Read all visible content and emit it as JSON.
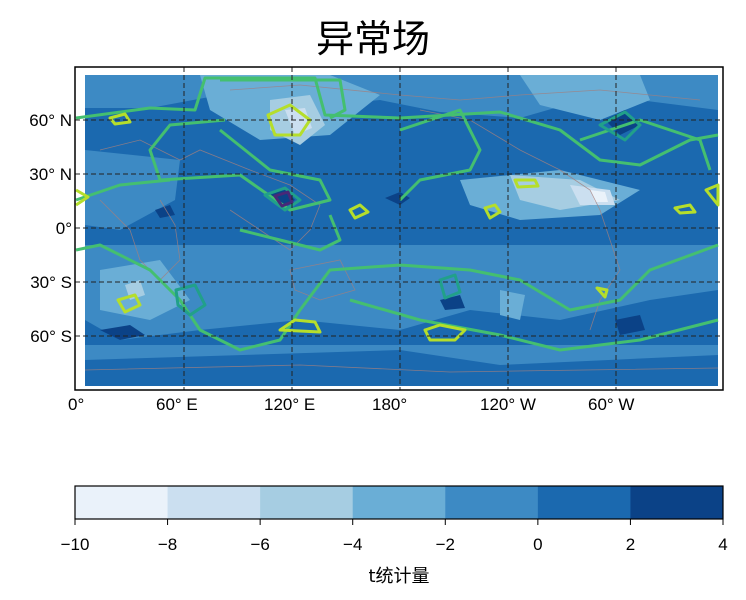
{
  "chart_data": {
    "type": "contour",
    "title": "异常场",
    "projection": "equirectangular map",
    "x_ticks": [
      "0°",
      "60° E",
      "120° E",
      "180°",
      "120° W",
      "60° W"
    ],
    "x_tick_values": [
      0,
      60,
      120,
      180,
      240,
      300
    ],
    "y_ticks": [
      "60° N",
      "30° N",
      "0°",
      "30° S",
      "60° S"
    ],
    "y_tick_values": [
      60,
      30,
      0,
      -30,
      -60
    ],
    "xlim": [
      0,
      360
    ],
    "ylim": [
      -90,
      90
    ],
    "grid": true,
    "grid_style": "dashed",
    "coastlines": true,
    "colorbar": {
      "label": "t统计量",
      "orientation": "horizontal",
      "placement": "bottom",
      "levels": [
        -10,
        -8,
        -6,
        -4,
        -2,
        0,
        2,
        4
      ],
      "tick_labels": [
        "−10",
        "−8",
        "−6",
        "−4",
        "−2",
        "0",
        "2",
        "4"
      ],
      "colors": [
        "#eaf2fa",
        "#cbdff0",
        "#a6cde2",
        "#6aaed6",
        "#3d8ac4",
        "#1b69af",
        "#0b4287"
      ]
    },
    "contour_line_colors": [
      "#482878",
      "#21a08a",
      "#44bf70",
      "#b5de2b"
    ]
  }
}
